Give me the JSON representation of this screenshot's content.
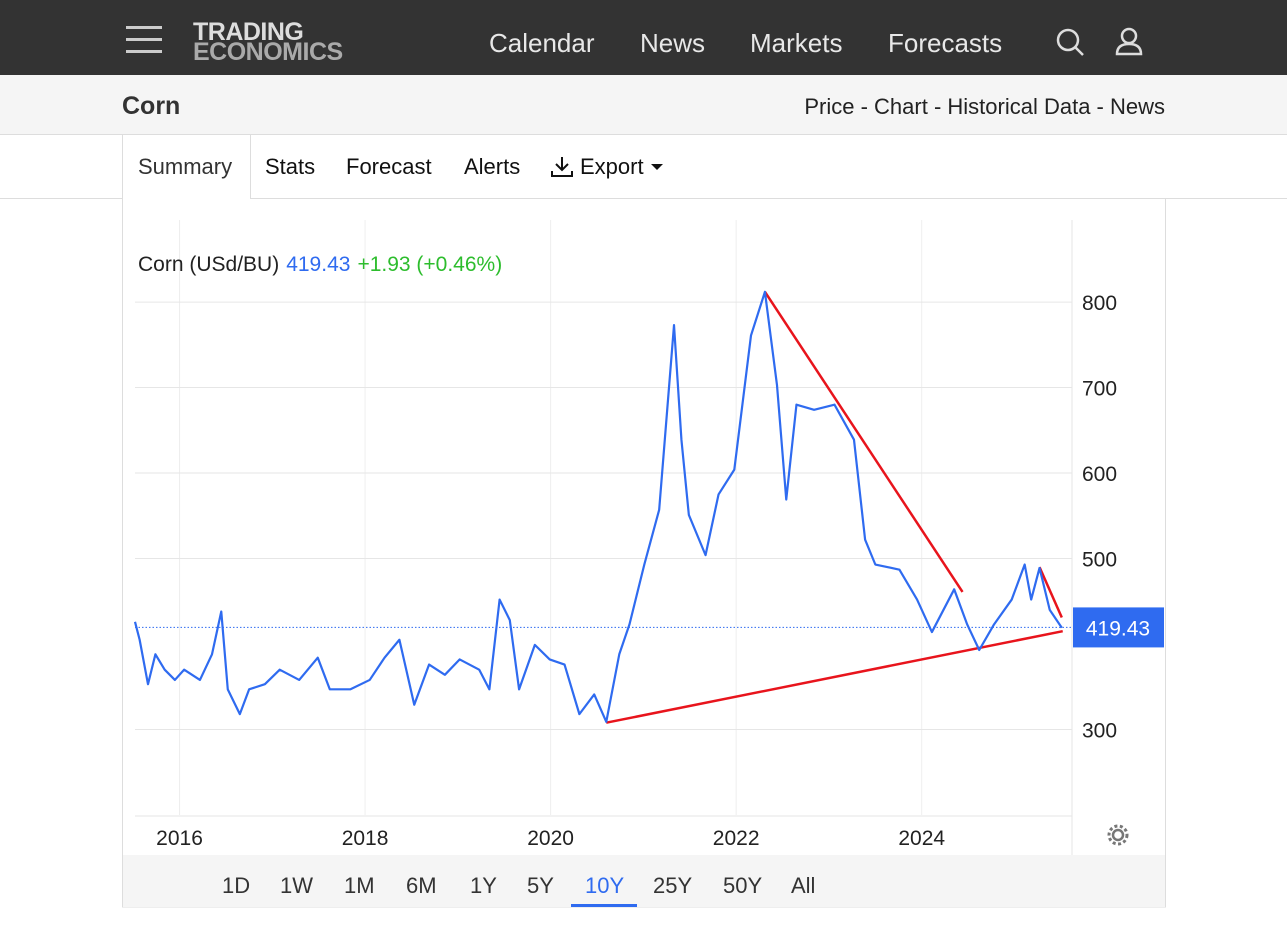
{
  "nav": {
    "logo": [
      "TRADING",
      "ECONOMICS"
    ],
    "links": [
      "Calendar",
      "News",
      "Markets",
      "Forecasts"
    ]
  },
  "header": {
    "title": "Corn",
    "subtitle": "Price - Chart - Historical Data - News"
  },
  "tabs": [
    "Summary",
    "Stats",
    "Forecast",
    "Alerts",
    "Export"
  ],
  "chart_data": {
    "type": "line",
    "series_name": "Corn (USd/BU)",
    "last": 419.43,
    "change": "+1.93 (+0.46%)",
    "color": "#2f6bf0",
    "change_color": "#2dbd2d",
    "x": [
      2015.52,
      2015.57,
      2015.66,
      2015.74,
      2015.84,
      2015.95,
      2016.05,
      2016.22,
      2016.35,
      2016.45,
      2016.52,
      2016.65,
      2016.75,
      2016.92,
      2017.08,
      2017.29,
      2017.49,
      2017.62,
      2017.84,
      2018.05,
      2018.21,
      2018.37,
      2018.53,
      2018.69,
      2018.86,
      2019.02,
      2019.23,
      2019.34,
      2019.45,
      2019.56,
      2019.66,
      2019.83,
      2019.99,
      2020.15,
      2020.31,
      2020.47,
      2020.6,
      2020.74,
      2020.85,
      2021.01,
      2021.17,
      2021.33,
      2021.41,
      2021.49,
      2021.67,
      2021.81,
      2021.98,
      2022.16,
      2022.31,
      2022.44,
      2022.54,
      2022.65,
      2022.84,
      2023.06,
      2023.27,
      2023.39,
      2023.5,
      2023.76,
      2023.95,
      2024.11,
      2024.35,
      2024.49,
      2024.62,
      2024.78,
      2024.97,
      2025.11,
      2025.18,
      2025.27,
      2025.38,
      2025.51
    ],
    "values": [
      426,
      405,
      353,
      388,
      370,
      358,
      370,
      358,
      388,
      438,
      347,
      318,
      347,
      353,
      370,
      358,
      384,
      347,
      347,
      358,
      384,
      405,
      329,
      376,
      364,
      382,
      370,
      347,
      452,
      428,
      347,
      399,
      382,
      376,
      318,
      341,
      309,
      388,
      423,
      493,
      557,
      773,
      639,
      551,
      504,
      575,
      604,
      761,
      812,
      703,
      569,
      680,
      674,
      680,
      639,
      522,
      493,
      487,
      452,
      414,
      464,
      423,
      393,
      423,
      452,
      493,
      452,
      489,
      440,
      419
    ],
    "trendlines": [
      {
        "color": "#e8141c",
        "x": [
          2020.6,
          2025.52
        ],
        "values": [
          308,
          415
        ]
      },
      {
        "color": "#e8141c",
        "x": [
          2022.31,
          2024.44
        ],
        "values": [
          812,
          461
        ]
      },
      {
        "color": "#e8141c",
        "x": [
          2025.27,
          2025.51
        ],
        "values": [
          490,
          431
        ]
      }
    ],
    "xlim": [
      2015.52,
      2025.62
    ],
    "xticks": [
      2016,
      2018,
      2020,
      2022,
      2024
    ],
    "ylim": [
      200,
      896
    ],
    "yticks": [
      300,
      500,
      600,
      700,
      800
    ],
    "grid": true
  },
  "ranges": [
    "1D",
    "1W",
    "1M",
    "6M",
    "1Y",
    "5Y",
    "10Y",
    "25Y",
    "50Y",
    "All"
  ],
  "active_range": "10Y"
}
